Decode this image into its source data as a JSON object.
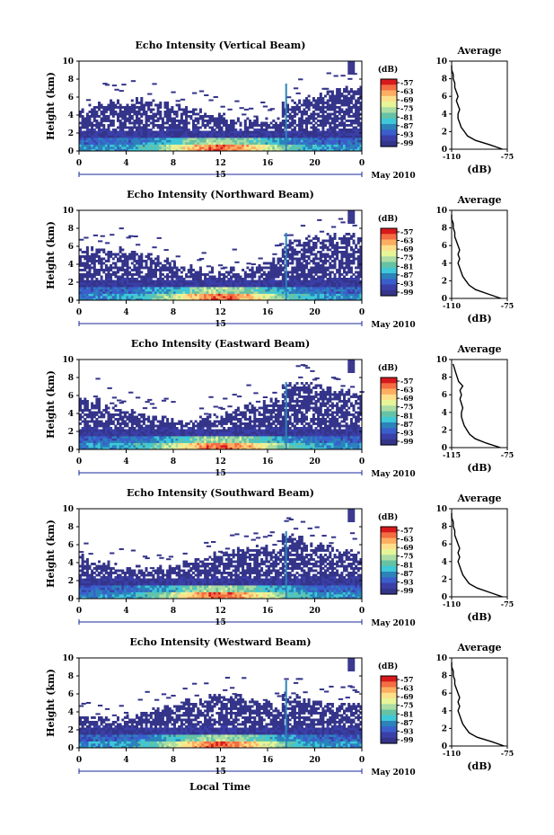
{
  "figure": {
    "xlabel": "Local Time",
    "date_label": "15",
    "month_label": "May 2010",
    "avg_title": "Average",
    "avg_xlabel": "(dB)",
    "colorbar_unit": "(dB)",
    "colorbar_ticks": [
      "-57",
      "-63",
      "-69",
      "-75",
      "-81",
      "-87",
      "-93",
      "-99"
    ],
    "colorbar_colors": [
      "#d7191c",
      "#f46d43",
      "#fdae61",
      "#fee08b",
      "#e6f598",
      "#abdda4",
      "#66c2a5",
      "#3ec8d8",
      "#2b83ba",
      "#3a5fcd",
      "#3b3fa8",
      "#34348a"
    ],
    "colors": {
      "noise": "#3b3a8f",
      "axis": "#000000"
    }
  },
  "chart_data": [
    {
      "type": "heatmap",
      "title": "Echo Intensity (Vertical Beam)",
      "ylabel": "Height (km)",
      "x_ticks": [
        "0",
        "4",
        "8",
        "12",
        "16",
        "20",
        "0"
      ],
      "y_ticks": [
        "0",
        "2",
        "4",
        "6",
        "8",
        "10"
      ],
      "xlim": [
        0,
        24
      ],
      "ylim": [
        0,
        10
      ],
      "colorbar_range": [
        -99,
        -57
      ],
      "average_profile": {
        "xlim": [
          -110,
          -75
        ],
        "x_ticks": [
          "-110",
          "-75"
        ],
        "y_ticks": [
          "0",
          "2",
          "4",
          "6",
          "8",
          "10"
        ],
        "height": [
          0,
          0.5,
          1,
          1.5,
          2,
          2.5,
          3,
          3.5,
          4,
          4.5,
          5,
          5.5,
          6,
          6.5,
          7,
          7.5,
          8,
          8.5,
          9,
          9.5
        ],
        "db": [
          -78,
          -86,
          -95,
          -100,
          -102,
          -104,
          -105,
          -106,
          -106,
          -105,
          -106,
          -107,
          -106,
          -107,
          -108,
          -108,
          -109,
          -109,
          -110,
          -110
        ]
      }
    },
    {
      "type": "heatmap",
      "title": "Echo Intensity (Northward Beam)",
      "ylabel": "Height (km)",
      "x_ticks": [
        "0",
        "4",
        "8",
        "12",
        "16",
        "20",
        "0"
      ],
      "y_ticks": [
        "0",
        "2",
        "4",
        "6",
        "8",
        "10"
      ],
      "xlim": [
        0,
        24
      ],
      "ylim": [
        0,
        10
      ],
      "colorbar_range": [
        -99,
        -57
      ],
      "average_profile": {
        "xlim": [
          -110,
          -75
        ],
        "x_ticks": [
          "-110",
          "-75"
        ],
        "y_ticks": [
          "0",
          "2",
          "4",
          "6",
          "8",
          "10"
        ],
        "height": [
          0,
          0.5,
          1,
          1.5,
          2,
          2.5,
          3,
          3.5,
          4,
          4.5,
          5,
          5.5,
          6,
          6.5,
          7,
          7.5,
          8,
          8.5,
          9,
          9.5
        ],
        "db": [
          -79,
          -87,
          -95,
          -99,
          -101,
          -103,
          -104,
          -105,
          -106,
          -105,
          -106,
          -105,
          -106,
          -107,
          -108,
          -108,
          -109,
          -109,
          -110,
          -110
        ]
      }
    },
    {
      "type": "heatmap",
      "title": "Echo Intensity (Eastward Beam)",
      "ylabel": "Height (km)",
      "x_ticks": [
        "0",
        "4",
        "8",
        "12",
        "16",
        "20",
        "0"
      ],
      "y_ticks": [
        "0",
        "2",
        "4",
        "6",
        "8",
        "10"
      ],
      "xlim": [
        0,
        24
      ],
      "ylim": [
        0,
        10
      ],
      "colorbar_range": [
        -99,
        -57
      ],
      "average_profile": {
        "xlim": [
          -115,
          -75
        ],
        "x_ticks": [
          "-115",
          "-75"
        ],
        "y_ticks": [
          "0",
          "2",
          "4",
          "6",
          "8",
          "10"
        ],
        "height": [
          0,
          0.5,
          1,
          1.5,
          2,
          2.5,
          3,
          3.5,
          4,
          4.5,
          5,
          5.5,
          6,
          6.5,
          7,
          7.5,
          8,
          8.5,
          9,
          9.5
        ],
        "db": [
          -80,
          -90,
          -98,
          -102,
          -104,
          -106,
          -107,
          -108,
          -108,
          -107,
          -108,
          -109,
          -108,
          -109,
          -107,
          -110,
          -111,
          -112,
          -113,
          -114
        ]
      }
    },
    {
      "type": "heatmap",
      "title": "Echo Intensity (Southward Beam)",
      "ylabel": "Height (km)",
      "x_ticks": [
        "0",
        "4",
        "8",
        "12",
        "16",
        "20",
        "0"
      ],
      "y_ticks": [
        "0",
        "2",
        "4",
        "6",
        "8",
        "10"
      ],
      "xlim": [
        0,
        24
      ],
      "ylim": [
        0,
        10
      ],
      "colorbar_range": [
        -99,
        -57
      ],
      "average_profile": {
        "xlim": [
          -110,
          -75
        ],
        "x_ticks": [
          "-110",
          "-75"
        ],
        "y_ticks": [
          "0",
          "2",
          "4",
          "6",
          "8",
          "10"
        ],
        "height": [
          0,
          0.5,
          1,
          1.5,
          2,
          2.5,
          3,
          3.5,
          4,
          4.5,
          5,
          5.5,
          6,
          6.5,
          7,
          7.5,
          8,
          8.5,
          9,
          9.5
        ],
        "db": [
          -78,
          -86,
          -94,
          -99,
          -101,
          -103,
          -104,
          -105,
          -106,
          -105,
          -106,
          -105,
          -106,
          -107,
          -108,
          -108,
          -109,
          -109,
          -110,
          -110
        ]
      }
    },
    {
      "type": "heatmap",
      "title": "Echo Intensity (Westward Beam)",
      "ylabel": "Height (km)",
      "x_ticks": [
        "0",
        "4",
        "8",
        "12",
        "16",
        "20",
        "0"
      ],
      "y_ticks": [
        "0",
        "2",
        "4",
        "6",
        "8",
        "10"
      ],
      "xlim": [
        0,
        24
      ],
      "ylim": [
        0,
        10
      ],
      "colorbar_range": [
        -99,
        -57
      ],
      "average_profile": {
        "xlim": [
          -110,
          -75
        ],
        "x_ticks": [
          "-110",
          "-75"
        ],
        "y_ticks": [
          "0",
          "2",
          "4",
          "6",
          "8",
          "10"
        ],
        "height": [
          0,
          0.5,
          1,
          1.5,
          2,
          2.5,
          3,
          3.5,
          4,
          4.5,
          5,
          5.5,
          6,
          6.5,
          7,
          7.5,
          8,
          8.5,
          9,
          9.5
        ],
        "db": [
          -77,
          -85,
          -94,
          -99,
          -101,
          -103,
          -104,
          -105,
          -106,
          -105,
          -106,
          -105,
          -106,
          -107,
          -108,
          -108,
          -109,
          -109,
          -110,
          -110
        ]
      }
    }
  ]
}
